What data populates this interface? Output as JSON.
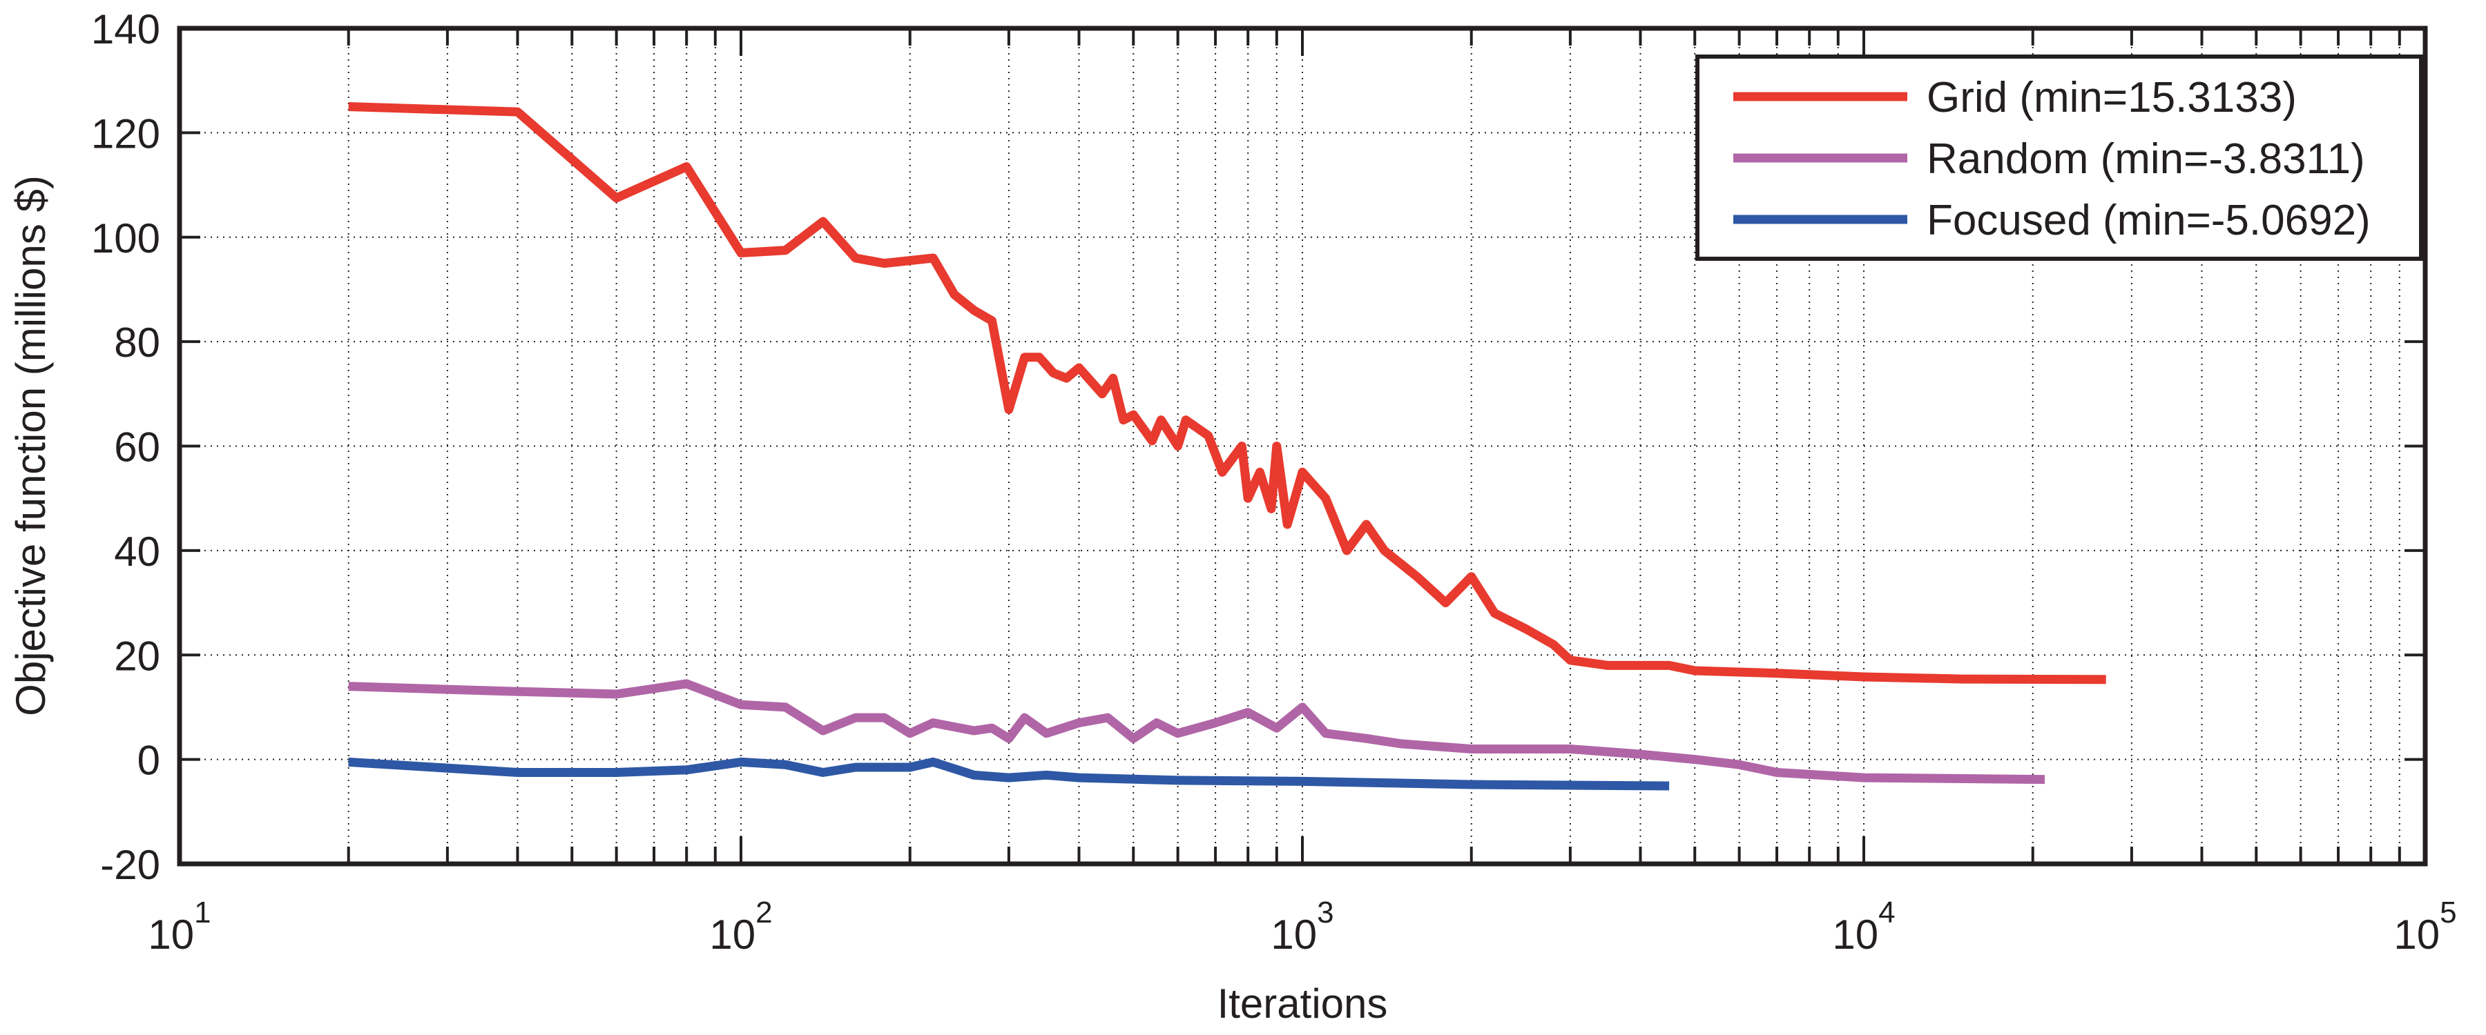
{
  "chart_data": {
    "type": "line",
    "title": "",
    "xlabel": "Iterations",
    "ylabel": "Objective function (millions $)",
    "xscale": "log",
    "xlim": [
      10,
      100000
    ],
    "ylim": [
      -20,
      140
    ],
    "grid": true,
    "legend_position": "top-right",
    "xticks": [
      {
        "base": "10",
        "exp": "1",
        "value": 10
      },
      {
        "base": "10",
        "exp": "2",
        "value": 100
      },
      {
        "base": "10",
        "exp": "3",
        "value": 1000
      },
      {
        "base": "10",
        "exp": "4",
        "value": 10000
      },
      {
        "base": "10",
        "exp": "5",
        "value": 100000
      }
    ],
    "yticks": [
      "-20",
      "0",
      "20",
      "40",
      "60",
      "80",
      "100",
      "120",
      "140"
    ],
    "series": [
      {
        "name": "Grid (min=15.3133)",
        "color": "#e83a2f",
        "x": [
          20,
          40,
          60,
          80,
          100,
          120,
          140,
          160,
          180,
          220,
          240,
          260,
          280,
          300,
          320,
          340,
          360,
          380,
          400,
          440,
          460,
          480,
          500,
          540,
          560,
          600,
          620,
          680,
          720,
          780,
          800,
          840,
          880,
          900,
          940,
          1000,
          1100,
          1200,
          1300,
          1400,
          1600,
          1800,
          2000,
          2200,
          2500,
          2800,
          3000,
          3500,
          4000,
          4500,
          5000,
          7000,
          10000,
          15000,
          27000
        ],
        "y": [
          125,
          124,
          107.5,
          113.5,
          97,
          97.5,
          103,
          96,
          95,
          96,
          89,
          86,
          84,
          67,
          77,
          77,
          74,
          73,
          75,
          70,
          73,
          65,
          66,
          61,
          65,
          60,
          65,
          62,
          55,
          60,
          50,
          55,
          48,
          60,
          45,
          55,
          50,
          40,
          45,
          40,
          35,
          30,
          35,
          28,
          25,
          22,
          19,
          18,
          18,
          18,
          17,
          16.5,
          15.8,
          15.4,
          15.3133
        ]
      },
      {
        "name": "Random (min=-3.8311)",
        "color": "#b066a6",
        "x": [
          20,
          40,
          60,
          80,
          100,
          120,
          140,
          160,
          180,
          200,
          220,
          260,
          280,
          300,
          320,
          350,
          400,
          450,
          500,
          550,
          600,
          700,
          800,
          900,
          1000,
          1100,
          1300,
          1500,
          2000,
          3000,
          4000,
          5000,
          6000,
          7000,
          10000,
          21000
        ],
        "y": [
          14,
          13,
          12.5,
          14.5,
          10.5,
          10,
          5.5,
          8,
          8,
          5,
          7,
          5.5,
          6,
          4,
          8,
          5,
          7,
          8,
          4,
          7,
          5,
          7,
          9,
          6,
          10,
          5,
          4,
          3,
          2,
          2,
          1,
          0,
          -1,
          -2.5,
          -3.5,
          -3.8311
        ]
      },
      {
        "name": "Focused (min=-5.0692)",
        "color": "#2e58a5",
        "x": [
          20,
          40,
          60,
          80,
          100,
          120,
          140,
          160,
          200,
          220,
          260,
          300,
          350,
          400,
          600,
          1000,
          2000,
          4500
        ],
        "y": [
          -0.5,
          -2.5,
          -2.5,
          -2,
          -0.5,
          -1,
          -2.5,
          -1.5,
          -1.5,
          -0.5,
          -3,
          -3.5,
          -3,
          -3.5,
          -4,
          -4.2,
          -4.8,
          -5.0692
        ]
      }
    ]
  }
}
